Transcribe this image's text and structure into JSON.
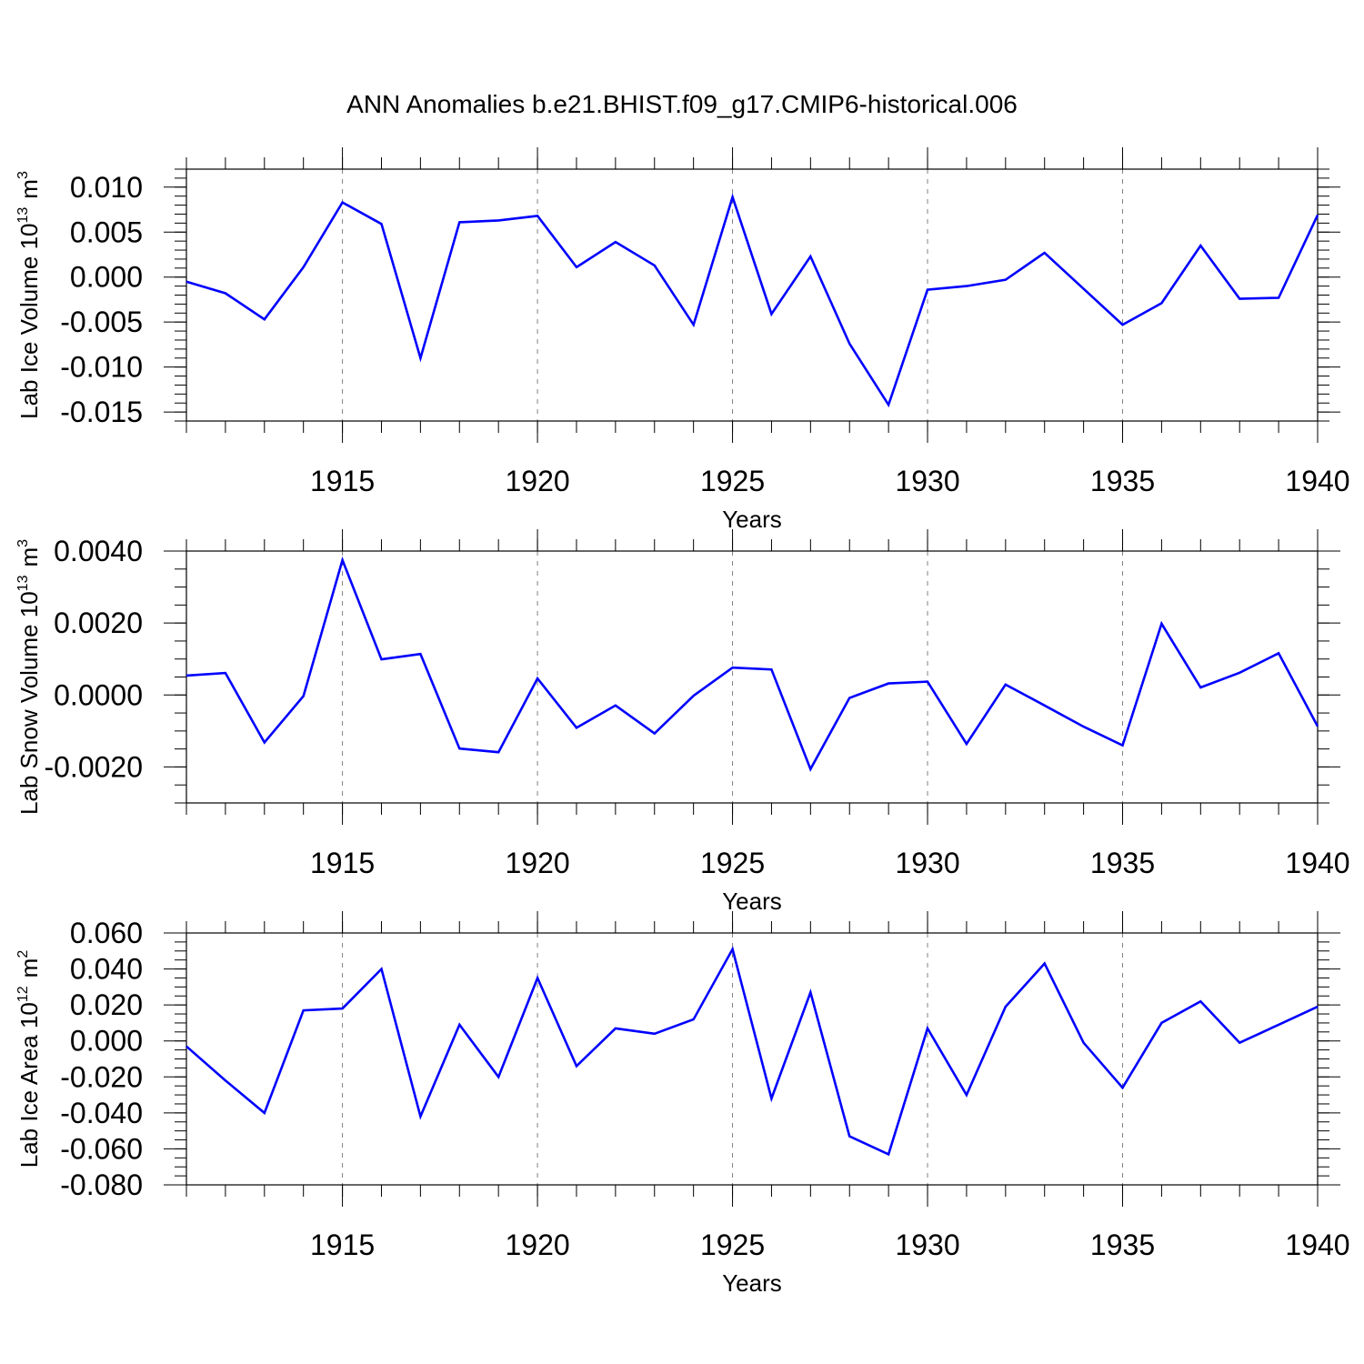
{
  "figure": {
    "title": "ANN Anomalies b.e21.BHIST.f09_g17.CMIP6-historical.006"
  },
  "colors": {
    "line": "#0000ff",
    "grid": "#808080",
    "axes": "#000000"
  },
  "chart_data": [
    {
      "type": "line",
      "title": "ANN Anomalies b.e21.BHIST.f09_g17.CMIP6-historical.006",
      "xlabel": "Years",
      "ylabel": {
        "text": "Lab Ice Volume 10",
        "exponent": "13",
        "unit": "m",
        "unit_exponent": "3"
      },
      "xlim": [
        1911,
        1940
      ],
      "ylim": [
        -0.016,
        0.012
      ],
      "xticks": [
        1915,
        1920,
        1925,
        1930,
        1935,
        1940
      ],
      "yticks": [
        {
          "value": 0.01,
          "label": "0.010"
        },
        {
          "value": 0.005,
          "label": "0.005"
        },
        {
          "value": 0.0,
          "label": "0.000"
        },
        {
          "value": -0.005,
          "label": "-0.005"
        },
        {
          "value": -0.01,
          "label": "-0.010"
        },
        {
          "value": -0.015,
          "label": "-0.015"
        }
      ],
      "y_minor_step": 0.001,
      "x_minor_step": 1,
      "grid": "vertical dashed at major x ticks",
      "x": [
        1911,
        1912,
        1913,
        1914,
        1915,
        1916,
        1917,
        1918,
        1919,
        1920,
        1921,
        1922,
        1923,
        1924,
        1925,
        1926,
        1927,
        1928,
        1929,
        1930,
        1931,
        1932,
        1933,
        1934,
        1935,
        1936,
        1937,
        1938,
        1939,
        1940
      ],
      "values": [
        -0.0005,
        -0.0018,
        -0.0047,
        0.0011,
        0.0083,
        0.0059,
        -0.009,
        0.0061,
        0.0063,
        0.0068,
        0.0011,
        0.0039,
        0.0013,
        -0.0053,
        0.0089,
        -0.0041,
        0.0023,
        -0.0074,
        -0.0142,
        -0.0014,
        -0.001,
        -0.0003,
        0.0027,
        -0.0013,
        -0.0053,
        -0.0029,
        0.0035,
        -0.0024,
        -0.0023,
        0.0069
      ]
    },
    {
      "type": "line",
      "xlabel": "Years",
      "ylabel": {
        "text": "Lab Snow Volume 10",
        "exponent": "13",
        "unit": "m",
        "unit_exponent": "3"
      },
      "xlim": [
        1911,
        1940
      ],
      "ylim": [
        -0.003,
        0.004
      ],
      "xticks": [
        1915,
        1920,
        1925,
        1930,
        1935,
        1940
      ],
      "yticks": [
        {
          "value": 0.004,
          "label": "0.0040"
        },
        {
          "value": 0.002,
          "label": "0.0020"
        },
        {
          "value": 0.0,
          "label": "0.0000"
        },
        {
          "value": -0.002,
          "label": "-0.0020"
        }
      ],
      "y_minor_step": 0.0005,
      "x_minor_step": 1,
      "grid": "vertical dashed at major x ticks",
      "x": [
        1911,
        1912,
        1913,
        1914,
        1915,
        1916,
        1917,
        1918,
        1919,
        1920,
        1921,
        1922,
        1923,
        1924,
        1925,
        1926,
        1927,
        1928,
        1929,
        1930,
        1931,
        1932,
        1933,
        1934,
        1935,
        1936,
        1937,
        1938,
        1939,
        1940
      ],
      "values": [
        0.00054,
        0.00061,
        -0.00132,
        -3e-05,
        0.00375,
        0.00099,
        0.00114,
        -0.00149,
        -0.00159,
        0.00046,
        -0.00091,
        -0.00029,
        -0.00107,
        -2e-05,
        0.00076,
        0.00071,
        -0.00206,
        -8e-05,
        0.00032,
        0.00037,
        -0.00136,
        0.00029,
        -0.00029,
        -0.00088,
        -0.0014,
        0.00198,
        0.00021,
        0.00062,
        0.00116,
        -0.00087
      ]
    },
    {
      "type": "line",
      "xlabel": "Years",
      "ylabel": {
        "text": "Lab Ice Area 10",
        "exponent": "12",
        "unit": "m",
        "unit_exponent": "2"
      },
      "xlim": [
        1911,
        1940
      ],
      "ylim": [
        -0.08,
        0.06
      ],
      "xticks": [
        1915,
        1920,
        1925,
        1930,
        1935,
        1940
      ],
      "yticks": [
        {
          "value": 0.06,
          "label": "0.060"
        },
        {
          "value": 0.04,
          "label": "0.040"
        },
        {
          "value": 0.02,
          "label": "0.020"
        },
        {
          "value": 0.0,
          "label": "0.000"
        },
        {
          "value": -0.02,
          "label": "-0.020"
        },
        {
          "value": -0.04,
          "label": "-0.040"
        },
        {
          "value": -0.06,
          "label": "-0.060"
        },
        {
          "value": -0.08,
          "label": "-0.080"
        }
      ],
      "y_minor_step": 0.005,
      "x_minor_step": 1,
      "grid": "vertical dashed at major x ticks",
      "x": [
        1911,
        1912,
        1913,
        1914,
        1915,
        1916,
        1917,
        1918,
        1919,
        1920,
        1921,
        1922,
        1923,
        1924,
        1925,
        1926,
        1927,
        1928,
        1929,
        1930,
        1931,
        1932,
        1933,
        1934,
        1935,
        1936,
        1937,
        1938,
        1939,
        1940
      ],
      "values": [
        -0.003,
        -0.022,
        -0.04,
        0.017,
        0.018,
        0.04,
        -0.042,
        0.009,
        -0.02,
        0.035,
        -0.014,
        0.007,
        0.004,
        0.012,
        0.051,
        -0.032,
        0.027,
        -0.053,
        -0.063,
        0.007,
        -0.03,
        0.019,
        0.043,
        -0.001,
        -0.026,
        0.01,
        0.022,
        -0.001,
        0.009,
        0.019
      ]
    }
  ]
}
